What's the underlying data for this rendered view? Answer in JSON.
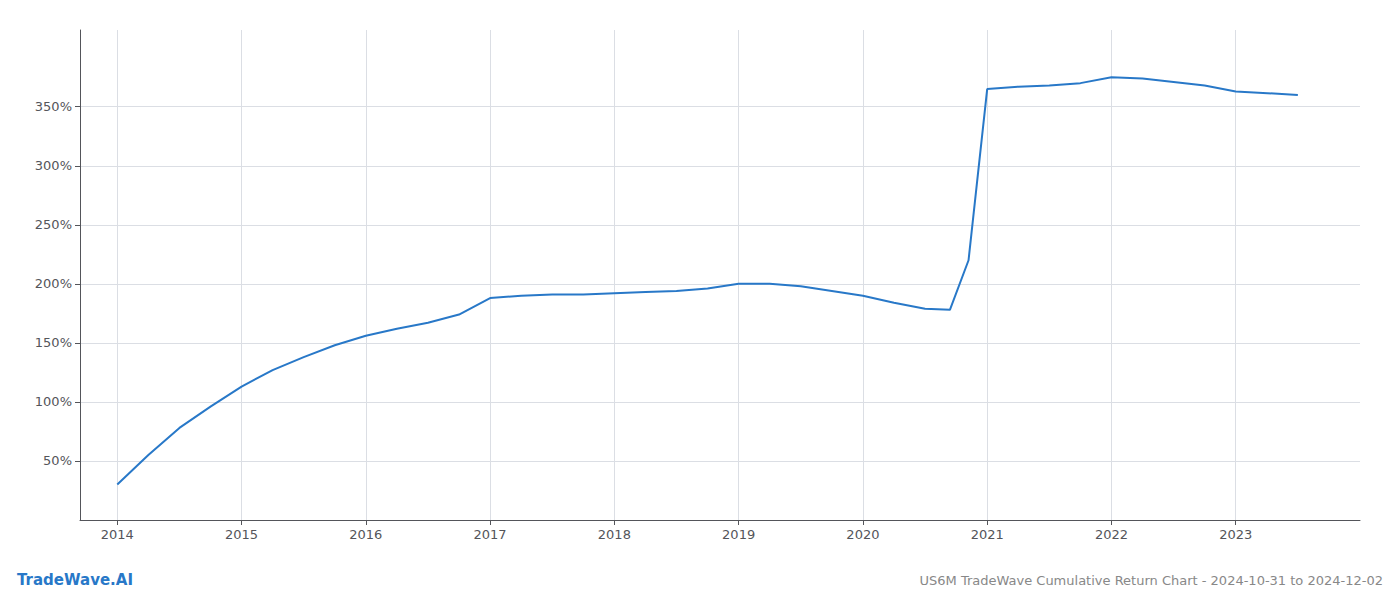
{
  "chart_data": {
    "type": "line",
    "title": "US6M TradeWave Cumulative Return Chart - 2024-10-31 to 2024-12-02",
    "annotations": [
      "TradeWave.AI"
    ],
    "color": "#2878c8",
    "x": [
      2014.0,
      2014.25,
      2014.5,
      2014.75,
      2015.0,
      2015.25,
      2015.5,
      2015.75,
      2016.0,
      2016.25,
      2016.5,
      2016.75,
      2017.0,
      2017.25,
      2017.5,
      2017.75,
      2018.0,
      2018.25,
      2018.5,
      2018.75,
      2019.0,
      2019.25,
      2019.5,
      2019.75,
      2020.0,
      2020.25,
      2020.5,
      2020.7,
      2020.85,
      2021.0,
      2021.25,
      2021.5,
      2021.75,
      2022.0,
      2022.25,
      2022.5,
      2022.75,
      2023.0,
      2023.5
    ],
    "values": [
      30,
      55,
      78,
      96,
      113,
      127,
      138,
      148,
      156,
      162,
      167,
      174,
      188,
      190,
      191,
      191,
      192,
      193,
      194,
      196,
      200,
      200,
      198,
      194,
      190,
      184,
      179,
      178,
      220,
      365,
      367,
      368,
      370,
      375,
      374,
      371,
      368,
      363,
      360
    ],
    "xlim": [
      2013.7,
      2024.0
    ],
    "ylim": [
      0,
      415
    ],
    "xticks": [
      2014,
      2015,
      2016,
      2017,
      2018,
      2019,
      2020,
      2021,
      2022,
      2023
    ],
    "yticks": [
      {
        "value": 50,
        "label": "50%"
      },
      {
        "value": 100,
        "label": "100%"
      },
      {
        "value": 150,
        "label": "150%"
      },
      {
        "value": 200,
        "label": "200%"
      },
      {
        "value": 250,
        "label": "250%"
      },
      {
        "value": 300,
        "label": "300%"
      },
      {
        "value": 350,
        "label": "350%"
      }
    ],
    "grid": true
  }
}
